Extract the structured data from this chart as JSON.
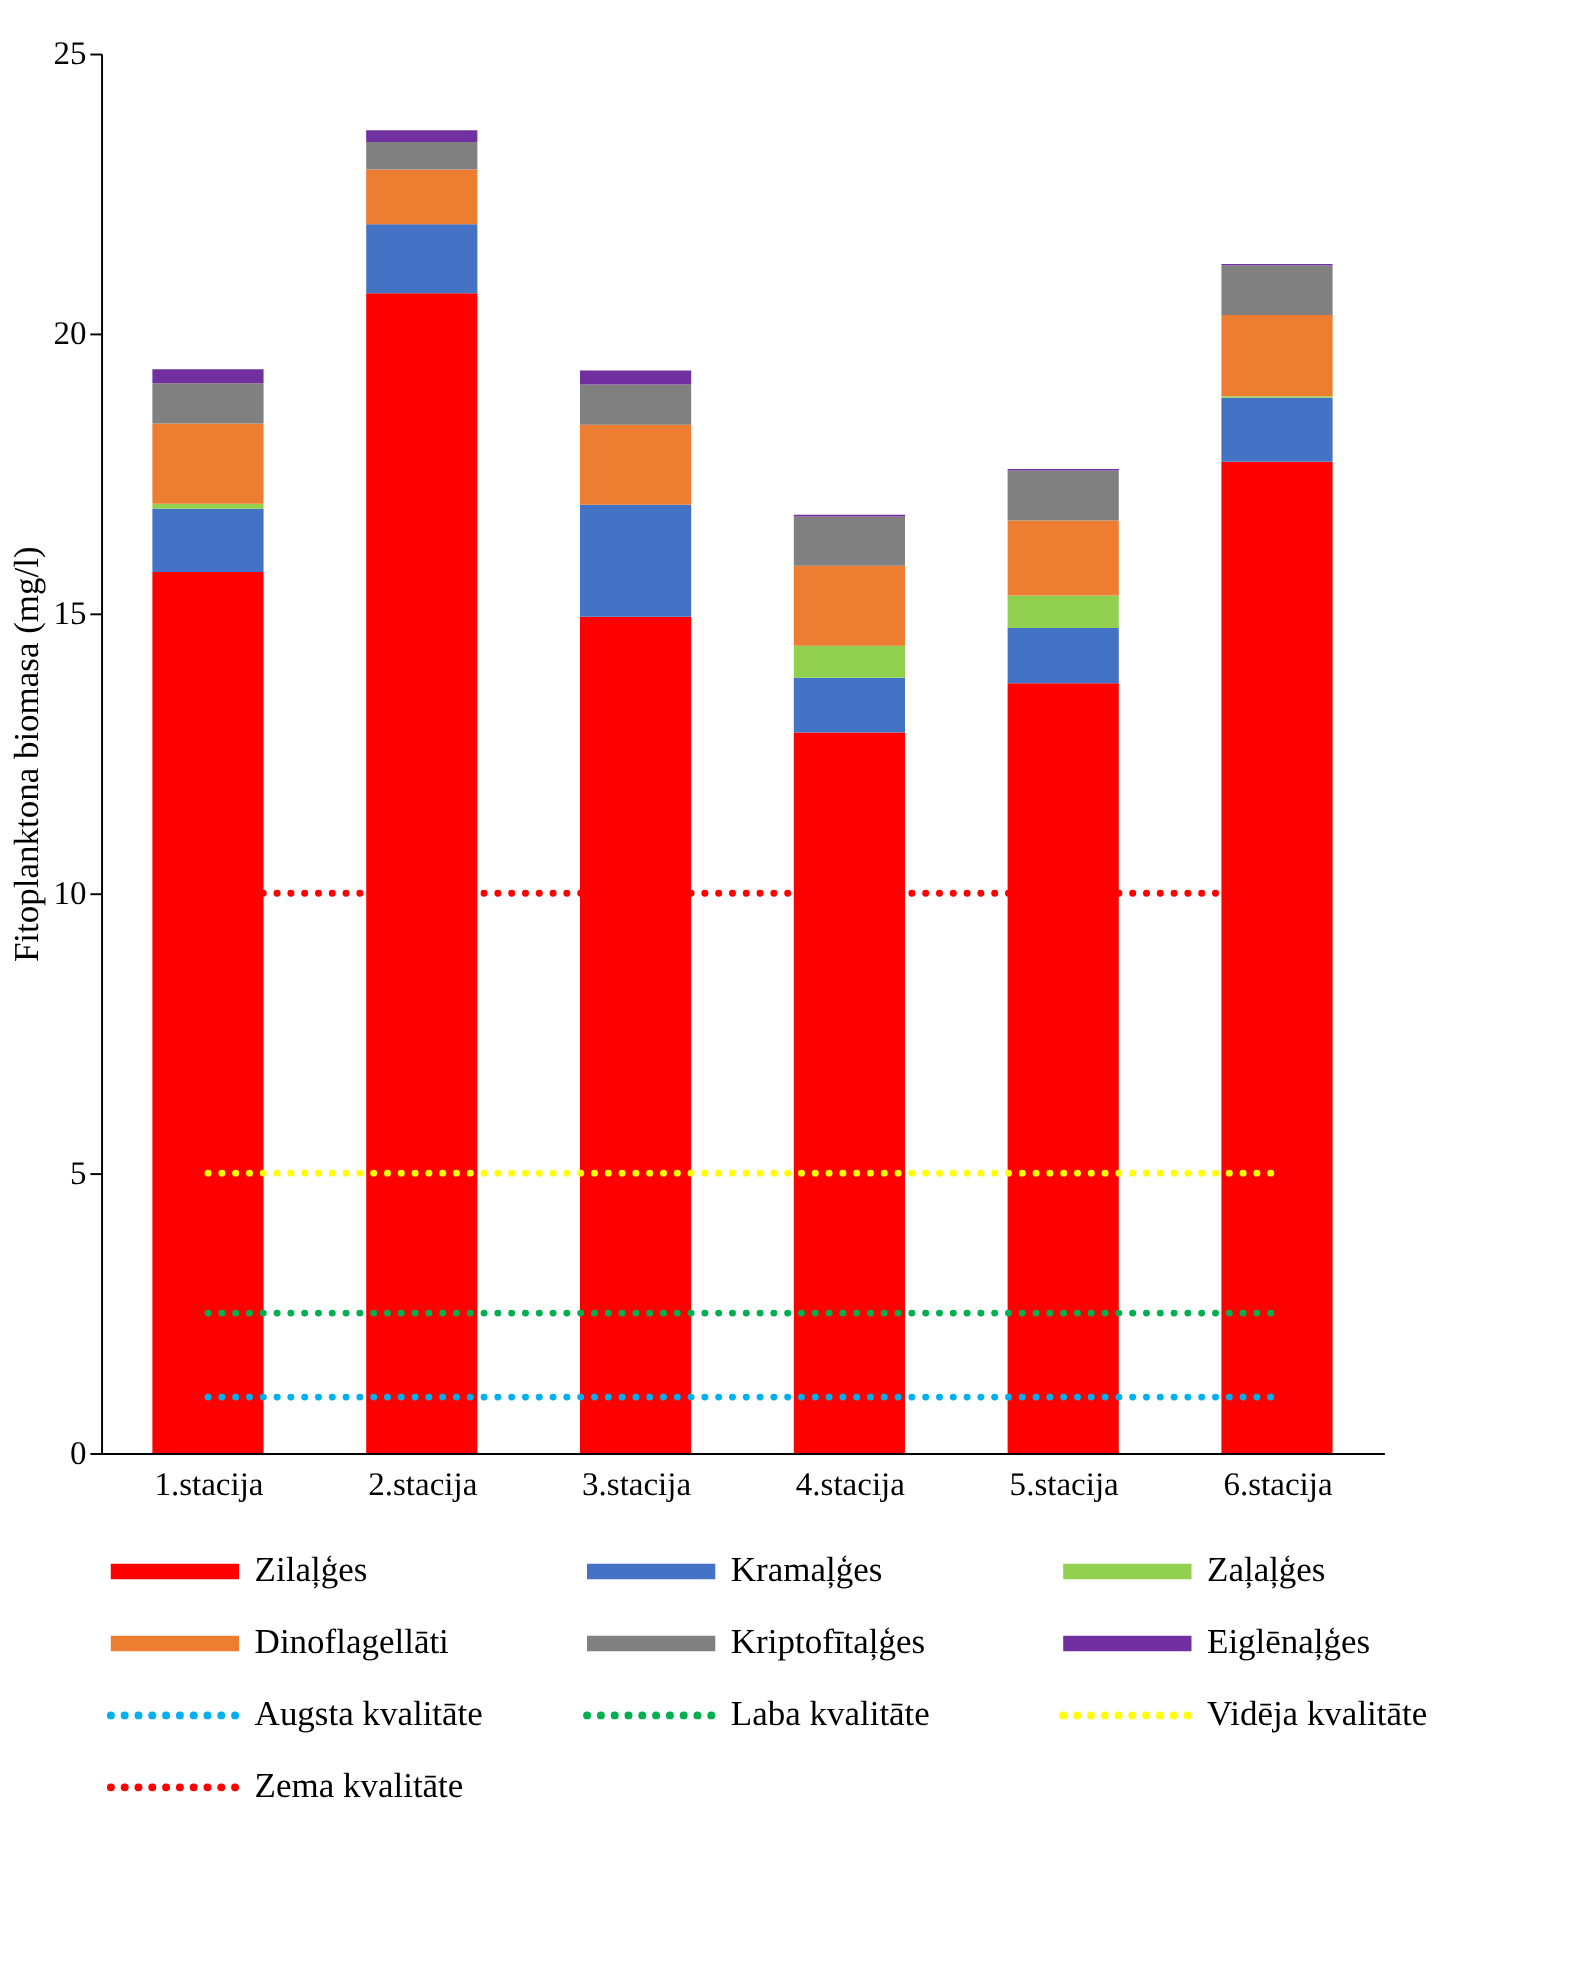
{
  "chart_data": {
    "type": "bar",
    "stacked": true,
    "ylabel": "Fitoplanktona biomasa (mg/l)",
    "categories": [
      "1.stacija",
      "2.stacija",
      "3.stacija",
      "4.stacija",
      "5.stacija",
      "6.stacija"
    ],
    "series": [
      {
        "name": "Zilaļģes",
        "color": "#ff0000",
        "values": [
          15.74,
          20.72,
          14.94,
          12.87,
          13.75,
          17.71
        ]
      },
      {
        "name": "Kramaļģes",
        "color": "#4472c4",
        "values": [
          1.13,
          1.23,
          2.0,
          0.98,
          0.99,
          1.14
        ]
      },
      {
        "name": "Zaļaļģes",
        "color": "#92d050",
        "values": [
          0.09,
          0,
          0,
          0.57,
          0.58,
          0.03
        ]
      },
      {
        "name": "Dinoflagellāti",
        "color": "#ed7d31",
        "values": [
          1.43,
          0.98,
          1.43,
          1.43,
          1.34,
          1.45
        ]
      },
      {
        "name": "Kriptofītaļģes",
        "color": "#808080",
        "values": [
          0.72,
          0.49,
          0.72,
          0.88,
          0.89,
          0.89
        ]
      },
      {
        "name": "Eiglēnaļģes",
        "color": "#7030a0",
        "values": [
          0.25,
          0.21,
          0.25,
          0.03,
          0.03,
          0.02
        ]
      }
    ],
    "ref_lines": [
      {
        "axis": "y",
        "value": 1,
        "label": "Augsta kvalitāte",
        "color": "#00b0f0",
        "line_style": "dotted"
      },
      {
        "axis": "y",
        "value": 2.5,
        "label": "Laba kvalitāte",
        "color": "#00b050",
        "line_style": "dotted"
      },
      {
        "axis": "y",
        "value": 5,
        "label": "Vidēja kvalitāte",
        "color": "#ffff00",
        "line_style": "dotted"
      },
      {
        "axis": "y",
        "value": 10,
        "label": "Zema kvalitāte",
        "color": "#ff0000",
        "line_style": "dotted"
      }
    ],
    "ylim": [
      0,
      25
    ],
    "yticks": [
      0,
      5,
      10,
      15,
      20,
      25
    ],
    "grid": false,
    "legend": "bottom"
  }
}
